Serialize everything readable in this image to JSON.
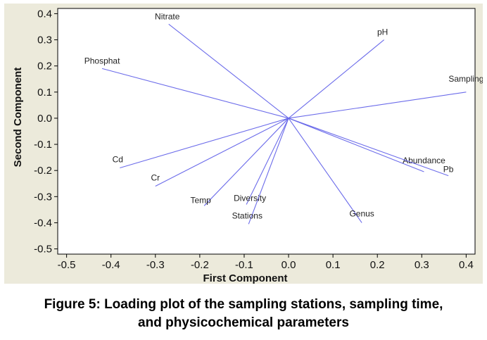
{
  "chart_data": {
    "type": "scatter",
    "subtype": "loading-plot-vectors",
    "xlabel": "First Component",
    "ylabel": "Second Component",
    "xlim": [
      -0.52,
      0.42
    ],
    "ylim": [
      -0.52,
      0.42
    ],
    "xticks": [
      -0.5,
      -0.4,
      -0.3,
      -0.2,
      -0.1,
      0.0,
      0.1,
      0.2,
      0.3,
      0.4
    ],
    "xtick_labels": [
      "-0.5",
      "-0.4",
      "-0.3",
      "-0.2",
      "-0.1",
      "0.0",
      "0.1",
      "0.2",
      "0.3",
      "0.4"
    ],
    "yticks": [
      0.4,
      0.3,
      0.2,
      0.1,
      0.0,
      -0.1,
      -0.2,
      -0.3,
      -0.4,
      -0.5
    ],
    "ytick_labels": [
      "0.4",
      "0.3",
      "0.2",
      "0.1",
      "0.0",
      "-0.1",
      "-0.2",
      "-0.3",
      "-0.4",
      "-0.5"
    ],
    "grid": false,
    "line_color": "#6b6bea",
    "plot_background": "#ffffff",
    "figure_background": "#eceadb",
    "vectors": [
      {
        "label": "Nitrate",
        "x": -0.27,
        "y": 0.36
      },
      {
        "label": "pH",
        "x": 0.215,
        "y": 0.3
      },
      {
        "label": "Phosphat",
        "x": -0.42,
        "y": 0.19
      },
      {
        "label": "Sampling",
        "x": 0.4,
        "y": 0.1
      },
      {
        "label": "Cd",
        "x": -0.38,
        "y": -0.19
      },
      {
        "label": "Cr",
        "x": -0.3,
        "y": -0.26
      },
      {
        "label": "Temp",
        "x": -0.19,
        "y": -0.335
      },
      {
        "label": "Diversity",
        "x": -0.095,
        "y": -0.33
      },
      {
        "label": "Stations",
        "x": -0.09,
        "y": -0.405
      },
      {
        "label": "Abundance",
        "x": 0.305,
        "y": -0.205
      },
      {
        "label": "Pb",
        "x": 0.36,
        "y": -0.22
      },
      {
        "label": "Genus",
        "x": 0.165,
        "y": -0.4
      }
    ]
  },
  "caption": {
    "line1": "Figure 5: Loading plot of the sampling stations, sampling time,",
    "line2": "and physicochemical parameters"
  }
}
